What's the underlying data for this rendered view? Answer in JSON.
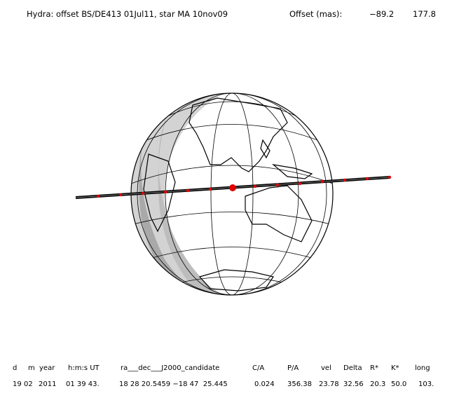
{
  "header": {
    "title": "Hydra: offset BS/DE413 01Jul11, star MA 10nov09",
    "offset_label": "Offset (mas):",
    "offset_values": [
      "−89.2",
      "177.8"
    ]
  },
  "table": {
    "columns": [
      "d",
      "m",
      "year",
      "h:m:s UT",
      "ra___dec___J2000_candidate",
      "C/A",
      "P/A",
      "vel",
      "Delta",
      "R*",
      "K*",
      "long"
    ],
    "row": [
      "19",
      "02",
      "2011",
      "01 39 43.",
      "18 28 20.5459 −18 47  25.445",
      "0.024",
      "356.38",
      "23.78",
      "32.56",
      "20.3",
      "50.0",
      "103."
    ]
  }
}
